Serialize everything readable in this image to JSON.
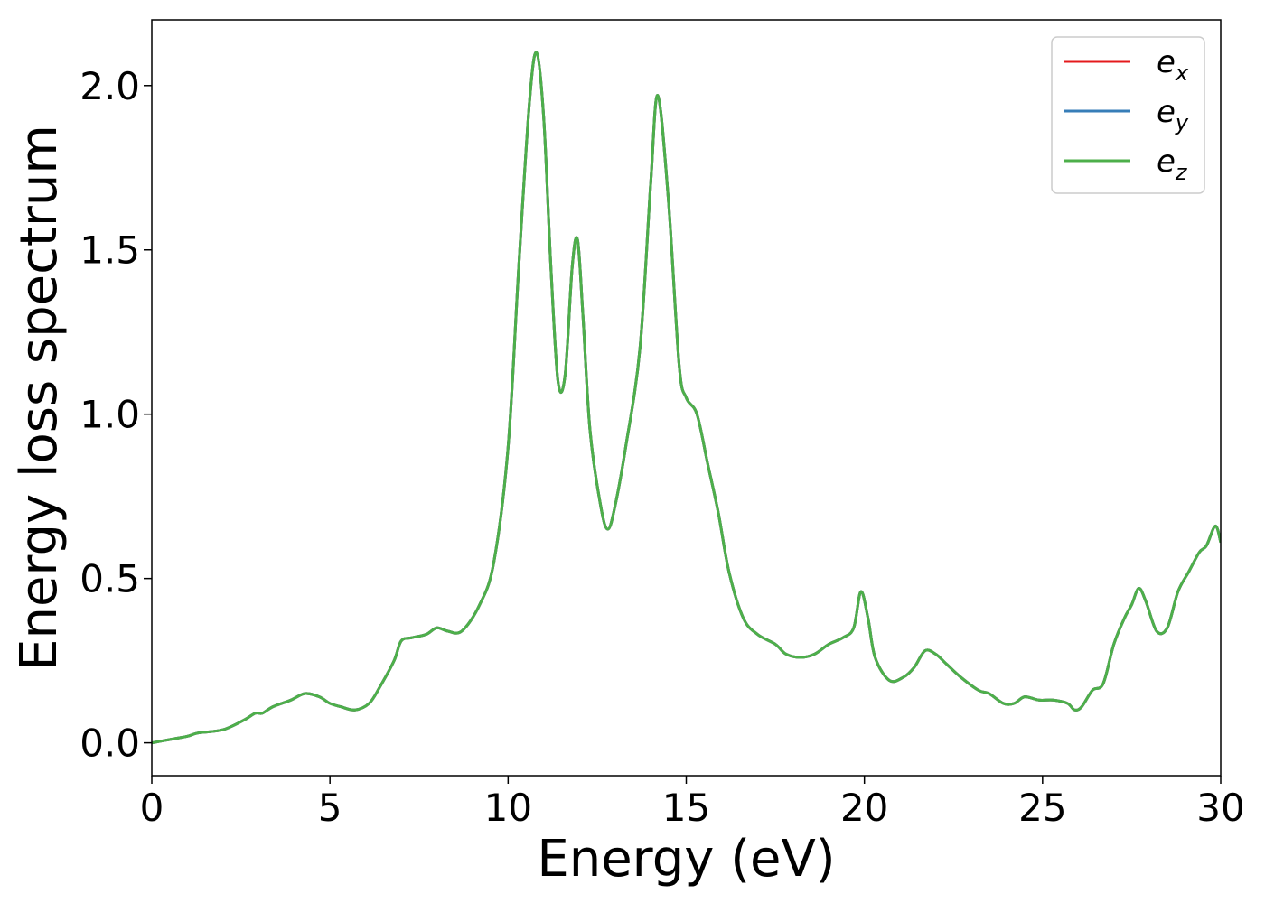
{
  "chart_data": {
    "type": "line",
    "title": "",
    "xlabel": "Energy (eV)",
    "ylabel": "Energy loss spectrum",
    "xlim": [
      0,
      30
    ],
    "ylim": [
      -0.1,
      2.2
    ],
    "xticks": [
      0,
      5,
      10,
      15,
      20,
      25,
      30
    ],
    "xtick_labels": [
      "0",
      "5",
      "10",
      "15",
      "20",
      "25",
      "30"
    ],
    "yticks": [
      0.0,
      0.5,
      1.0,
      1.5,
      2.0
    ],
    "ytick_labels": [
      "0.0",
      "0.5",
      "1.0",
      "1.5",
      "2.0"
    ],
    "grid": false,
    "legend_position": "top-right",
    "x": [
      0,
      0.5,
      1.0,
      1.3,
      2.0,
      2.6,
      2.9,
      3.1,
      3.4,
      3.9,
      4.3,
      4.7,
      5.0,
      5.3,
      5.7,
      6.1,
      6.4,
      6.8,
      7.0,
      7.3,
      7.7,
      8.0,
      8.3,
      8.7,
      9.2,
      9.6,
      10.0,
      10.3,
      10.6,
      10.8,
      11.0,
      11.2,
      11.4,
      11.6,
      11.8,
      11.95,
      12.1,
      12.3,
      12.6,
      12.8,
      13.0,
      13.3,
      13.7,
      14.0,
      14.2,
      14.5,
      14.8,
      15.0,
      15.3,
      15.6,
      15.9,
      16.2,
      16.6,
      17.0,
      17.5,
      17.8,
      18.2,
      18.6,
      19.0,
      19.4,
      19.7,
      19.9,
      20.1,
      20.3,
      20.7,
      21.1,
      21.4,
      21.7,
      22.0,
      22.3,
      22.7,
      23.2,
      23.5,
      23.9,
      24.2,
      24.5,
      24.9,
      25.3,
      25.7,
      25.9,
      26.1,
      26.4,
      26.7,
      27.0,
      27.3,
      27.5,
      27.7,
      27.9,
      28.2,
      28.5,
      28.8,
      29.1,
      29.4,
      29.6,
      29.85,
      30.0
    ],
    "series": [
      {
        "name": "e_x",
        "color": "#e41a1c",
        "y": [
          0.0,
          0.01,
          0.02,
          0.03,
          0.04,
          0.07,
          0.09,
          0.09,
          0.11,
          0.13,
          0.15,
          0.14,
          0.12,
          0.11,
          0.1,
          0.12,
          0.17,
          0.25,
          0.31,
          0.32,
          0.33,
          0.35,
          0.34,
          0.34,
          0.42,
          0.55,
          0.9,
          1.45,
          1.95,
          2.1,
          1.9,
          1.45,
          1.1,
          1.12,
          1.45,
          1.53,
          1.3,
          0.95,
          0.72,
          0.65,
          0.72,
          0.9,
          1.2,
          1.7,
          1.97,
          1.65,
          1.15,
          1.05,
          1.0,
          0.85,
          0.7,
          0.52,
          0.38,
          0.33,
          0.3,
          0.27,
          0.26,
          0.27,
          0.3,
          0.32,
          0.35,
          0.46,
          0.38,
          0.26,
          0.19,
          0.2,
          0.23,
          0.28,
          0.27,
          0.24,
          0.2,
          0.16,
          0.15,
          0.12,
          0.12,
          0.14,
          0.13,
          0.13,
          0.12,
          0.1,
          0.11,
          0.16,
          0.18,
          0.3,
          0.38,
          0.42,
          0.47,
          0.43,
          0.34,
          0.35,
          0.46,
          0.52,
          0.58,
          0.6,
          0.66,
          0.61
        ]
      },
      {
        "name": "e_y",
        "color": "#377eb8",
        "y": [
          0.0,
          0.01,
          0.02,
          0.03,
          0.04,
          0.07,
          0.09,
          0.09,
          0.11,
          0.13,
          0.15,
          0.14,
          0.12,
          0.11,
          0.1,
          0.12,
          0.17,
          0.25,
          0.31,
          0.32,
          0.33,
          0.35,
          0.34,
          0.34,
          0.42,
          0.55,
          0.9,
          1.45,
          1.95,
          2.1,
          1.9,
          1.45,
          1.1,
          1.12,
          1.45,
          1.53,
          1.3,
          0.95,
          0.72,
          0.65,
          0.72,
          0.9,
          1.2,
          1.7,
          1.97,
          1.65,
          1.15,
          1.05,
          1.0,
          0.85,
          0.7,
          0.52,
          0.38,
          0.33,
          0.3,
          0.27,
          0.26,
          0.27,
          0.3,
          0.32,
          0.35,
          0.46,
          0.38,
          0.26,
          0.19,
          0.2,
          0.23,
          0.28,
          0.27,
          0.24,
          0.2,
          0.16,
          0.15,
          0.12,
          0.12,
          0.14,
          0.13,
          0.13,
          0.12,
          0.1,
          0.11,
          0.16,
          0.18,
          0.3,
          0.38,
          0.42,
          0.47,
          0.43,
          0.34,
          0.35,
          0.46,
          0.52,
          0.58,
          0.6,
          0.66,
          0.61
        ]
      },
      {
        "name": "e_z",
        "color": "#4daf4a",
        "y": [
          0.0,
          0.01,
          0.02,
          0.03,
          0.04,
          0.07,
          0.09,
          0.09,
          0.11,
          0.13,
          0.15,
          0.14,
          0.12,
          0.11,
          0.1,
          0.12,
          0.17,
          0.25,
          0.31,
          0.32,
          0.33,
          0.35,
          0.34,
          0.34,
          0.42,
          0.55,
          0.9,
          1.45,
          1.95,
          2.1,
          1.9,
          1.45,
          1.1,
          1.12,
          1.45,
          1.53,
          1.3,
          0.95,
          0.72,
          0.65,
          0.72,
          0.9,
          1.2,
          1.7,
          1.97,
          1.65,
          1.15,
          1.05,
          1.0,
          0.85,
          0.7,
          0.52,
          0.38,
          0.33,
          0.3,
          0.27,
          0.26,
          0.27,
          0.3,
          0.32,
          0.35,
          0.46,
          0.38,
          0.26,
          0.19,
          0.2,
          0.23,
          0.28,
          0.27,
          0.24,
          0.2,
          0.16,
          0.15,
          0.12,
          0.12,
          0.14,
          0.13,
          0.13,
          0.12,
          0.1,
          0.11,
          0.16,
          0.18,
          0.3,
          0.38,
          0.42,
          0.47,
          0.43,
          0.34,
          0.35,
          0.46,
          0.52,
          0.58,
          0.6,
          0.66,
          0.61
        ]
      }
    ],
    "legend": [
      {
        "base": "e",
        "sub": "x",
        "color": "#e41a1c"
      },
      {
        "base": "e",
        "sub": "y",
        "color": "#377eb8"
      },
      {
        "base": "e",
        "sub": "z",
        "color": "#4daf4a"
      }
    ]
  }
}
